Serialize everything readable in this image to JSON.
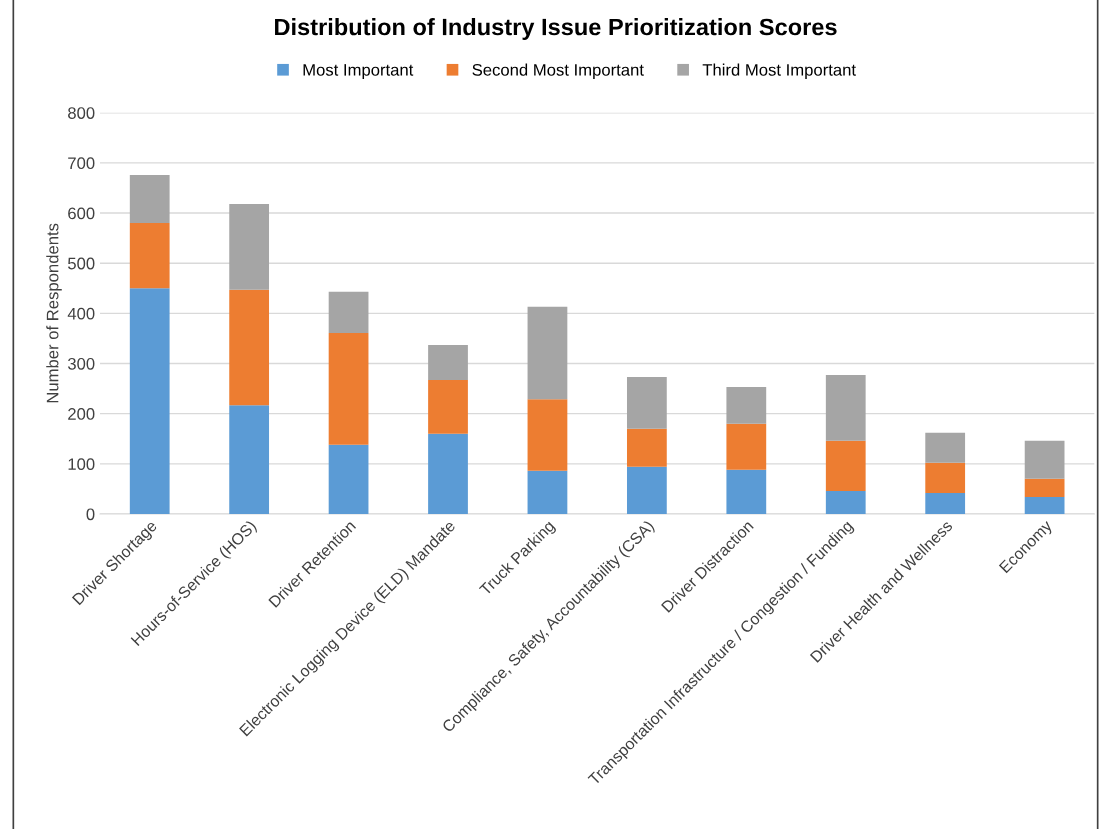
{
  "chart_data": {
    "type": "bar",
    "title": "Distribution of Industry Issue Prioritization Scores",
    "ylabel": "Number of Respondents",
    "categories": [
      "Driver Shortage",
      "Hours-of-Service (HOS)",
      "Driver Retention",
      "Electronic Logging Device (ELD) Mandate",
      "Truck Parking",
      "Compliance, Safety, Accountability (CSA)",
      "Driver Distraction",
      "Transportation Infrastructure / Congestion / Funding",
      "Driver Health and Wellness",
      "Economy"
    ],
    "stacked": true,
    "series": [
      {
        "name": "Most Important",
        "color": "#5b9bd5",
        "values": [
          450,
          217,
          138,
          160,
          86,
          94,
          88,
          46,
          42,
          34
        ]
      },
      {
        "name": "Second Most Important",
        "color": "#ed7d31",
        "values": [
          130,
          230,
          223,
          107,
          143,
          76,
          92,
          100,
          60,
          36
        ]
      },
      {
        "name": "Third Most Important",
        "color": "#a5a5a5",
        "values": [
          96,
          171,
          82,
          70,
          184,
          103,
          73,
          131,
          60,
          76
        ]
      }
    ],
    "ylim": [
      0,
      800
    ],
    "yticks": [
      0,
      100,
      200,
      300,
      400,
      500,
      600,
      700,
      800
    ],
    "grid": "y",
    "legend": "top"
  }
}
